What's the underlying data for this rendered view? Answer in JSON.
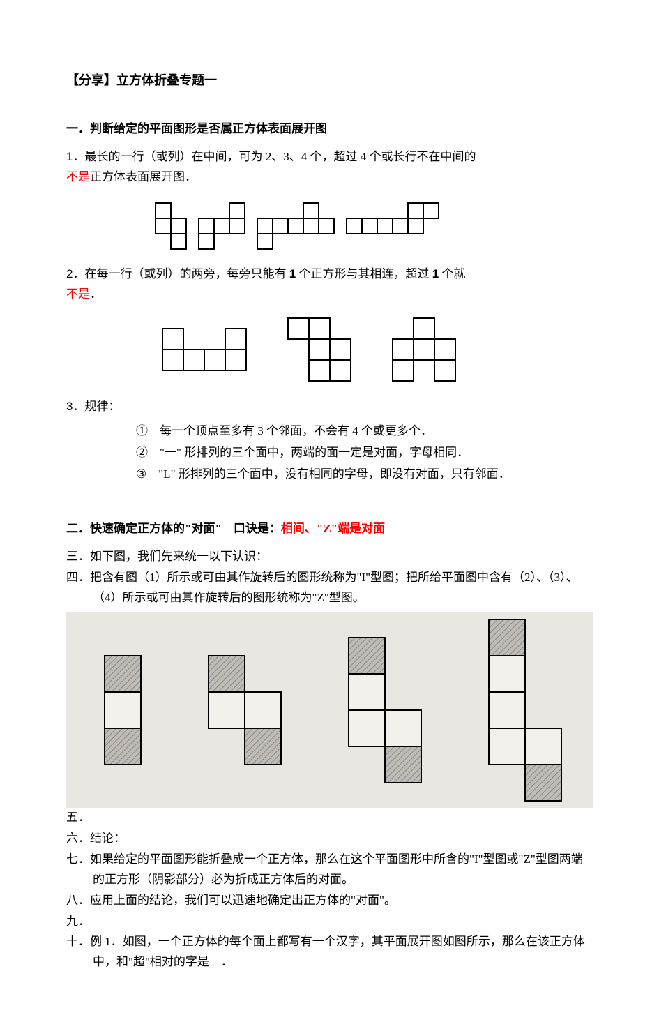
{
  "colors": {
    "text": "#000000",
    "red": "#ff0000",
    "bg": "#ffffff",
    "grid_bg": "#e9e7e2",
    "shade": "#bfbcb7",
    "line": "#000000"
  },
  "title": "【分享】立方体折叠专题一",
  "section1": {
    "heading": "一．判断给定的平面图形是否属正方体表面展开图",
    "r1_num": "1．",
    "r1_a": "最长的一行（或列）在中间，可为 2、3、4 个，超过 4 个或长行不在中间的",
    "r1_red": "不是",
    "r1_b": "正方体表面展开图．",
    "r2_num": "2．",
    "r2_a": "在每一行（或列）的两旁，每旁只能有 ",
    "r2_b": " 个正方形与其相连，超过 ",
    "r2_c": " 个就",
    "r2_one": "1",
    "r2_red": "不是",
    "r2_d": "．",
    "r3_num": "3．",
    "r3_label": "规律：",
    "r3_1": "①　每一个顶点至多有 3 个邻面，不会有 4 个或更多个．",
    "r3_2": "②　\"一\" 形排列的三个面中，两端的面一定是对面，字母相同．",
    "r3_3": "③　\"L\" 形排列的三个面中，没有相同的字母，即没有对面，只有邻面．"
  },
  "section2": {
    "heading_a": "二．快速确定正方体的\"对面\"　口诀是：",
    "heading_red": "相间、\"Z\"端是对面",
    "item3": "三．如下图，我们先来统一以下认识：",
    "item4": "四．把含有图（1）所示或可由其作旋转后的图形统称为\"I\"型图；把所给平面图中含有（2）、（3）、（4）所示或可由其作旋转后的图形统称为\"Z\"型图。",
    "item5": "五．",
    "item6": "六．结论：",
    "item7": "七．如果给定的平面图形能折叠成一个正方体，那么在这个平面图形中所含的\"I\"型图或\"Z\"型图两端的正方形（阴影部分）必为折成正方体后的对面。",
    "item8": "八．应用上面的结论，我们可以迅速地确定出正方体的\"对面\"。",
    "item9": "九．",
    "item10": "十．例 1．如图，一个正方体的每个面上都写有一个汉字，其平面展开图如图所示，那么在该正方体中，和\"超\"相对的字是　．"
  },
  "fig1": {
    "cell": 22,
    "shapes": [
      {
        "top_cells": [
          0
        ],
        "middle_len": 2,
        "bottom_cells": [
          1
        ]
      },
      {
        "top_cells": [
          2
        ],
        "middle_len": 3,
        "bottom_cells": [
          0
        ]
      },
      {
        "top_cells": [
          3
        ],
        "middle_len": 5,
        "bottom_cells": [
          0
        ]
      },
      {
        "top_cells": [
          4,
          5
        ],
        "middle_len": 5,
        "bottom_cells": null
      }
    ]
  },
  "fig2": {
    "cell": 30,
    "shapes": [
      {
        "cells": [
          [
            0,
            0
          ],
          [
            0,
            3
          ],
          [
            1,
            0
          ],
          [
            1,
            1
          ],
          [
            1,
            2
          ],
          [
            1,
            3
          ]
        ]
      },
      {
        "cells": [
          [
            0,
            0
          ],
          [
            0,
            1
          ],
          [
            1,
            1
          ],
          [
            1,
            2
          ],
          [
            2,
            1
          ],
          [
            2,
            2
          ]
        ]
      },
      {
        "cells": [
          [
            0,
            1
          ],
          [
            1,
            0
          ],
          [
            1,
            1
          ],
          [
            1,
            2
          ],
          [
            2,
            0
          ],
          [
            2,
            2
          ]
        ]
      }
    ]
  },
  "fig3": {
    "panel_bg": "#e9e7e2",
    "cell": 52,
    "shapes": [
      {
        "w": 1,
        "h": 3,
        "cells": [
          [
            0,
            0
          ],
          [
            1,
            0
          ],
          [
            2,
            0
          ]
        ],
        "shaded": [
          [
            0,
            0
          ],
          [
            2,
            0
          ]
        ]
      },
      {
        "w": 2,
        "h": 3,
        "cells": [
          [
            0,
            0
          ],
          [
            1,
            0
          ],
          [
            1,
            1
          ],
          [
            2,
            1
          ]
        ],
        "shaded": [
          [
            0,
            0
          ],
          [
            2,
            1
          ]
        ]
      },
      {
        "w": 2,
        "h": 4,
        "cells": [
          [
            0,
            0
          ],
          [
            1,
            0
          ],
          [
            2,
            0
          ],
          [
            2,
            1
          ],
          [
            3,
            1
          ]
        ],
        "shaded": [
          [
            0,
            0
          ],
          [
            3,
            1
          ]
        ]
      },
      {
        "w": 2,
        "h": 5,
        "cells": [
          [
            0,
            0
          ],
          [
            1,
            0
          ],
          [
            2,
            0
          ],
          [
            3,
            0
          ],
          [
            3,
            1
          ],
          [
            4,
            1
          ]
        ],
        "shaded": [
          [
            0,
            0
          ],
          [
            4,
            1
          ]
        ]
      }
    ]
  }
}
